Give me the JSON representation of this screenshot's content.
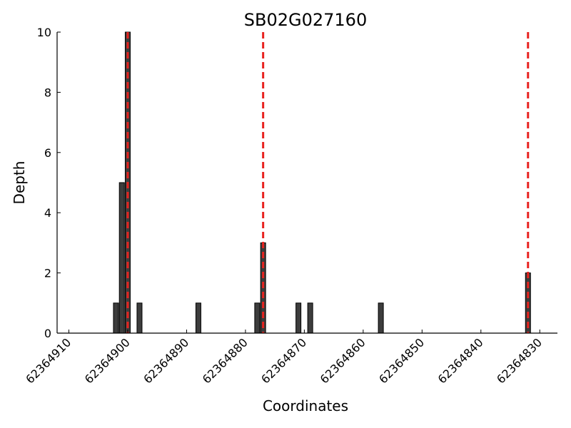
{
  "chart_data": {
    "type": "bar",
    "title": "SB02G027160",
    "xlabel": "Coordinates",
    "ylabel": "Depth",
    "x_reversed": true,
    "xlim": [
      62364912,
      62364827
    ],
    "ylim": [
      0,
      10
    ],
    "xticks": [
      62364910,
      62364900,
      62364890,
      62364880,
      62364870,
      62364860,
      62364850,
      62364840,
      62364830
    ],
    "yticks": [
      0,
      2,
      4,
      6,
      8,
      10
    ],
    "bars": [
      {
        "x": 62364902,
        "y": 1
      },
      {
        "x": 62364901,
        "y": 5
      },
      {
        "x": 62364900,
        "y": 10
      },
      {
        "x": 62364898,
        "y": 1
      },
      {
        "x": 62364888,
        "y": 1
      },
      {
        "x": 62364878,
        "y": 1
      },
      {
        "x": 62364877,
        "y": 3
      },
      {
        "x": 62364871,
        "y": 1
      },
      {
        "x": 62364869,
        "y": 1
      },
      {
        "x": 62364857,
        "y": 1
      },
      {
        "x": 62364832,
        "y": 2
      }
    ],
    "markers": [
      62364900,
      62364877,
      62364832
    ],
    "marker_color": "#e8231f",
    "bar_color": "#3d3d3d"
  }
}
